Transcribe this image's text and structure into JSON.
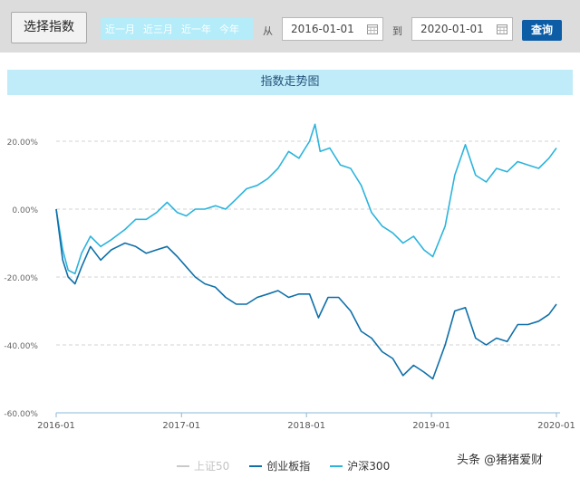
{
  "toolbar": {
    "select_index_label": "选择指数",
    "quick_ranges": [
      "近一月",
      "近三月",
      "近一年",
      "今年"
    ],
    "from_label": "从",
    "start_date": "2016-01-01",
    "to_label": "到",
    "end_date": "2020-01-01",
    "query_label": "查询"
  },
  "chart_title": "指数走势图",
  "watermark": "头条 @猪猪爱财",
  "colors": {
    "shanghai50": "#c9c9c9",
    "chinext": "#0e6fa9",
    "hs300": "#2cb4dd"
  },
  "chart_data": {
    "type": "line",
    "title": "指数走势图",
    "x_ticks": [
      "2016-01",
      "2017-01",
      "2018-01",
      "2019-01",
      "2020-01"
    ],
    "y_ticks": [
      "20.00%",
      "0.00%",
      "-20.00%",
      "-40.00%",
      "-60.00%"
    ],
    "ylim": [
      -60,
      20
    ],
    "y_unit": "%",
    "grid": "horizontal dashed",
    "legend_position": "bottom",
    "series": [
      {
        "name": "上证50",
        "hidden": true,
        "points": []
      },
      {
        "name": "创业板指",
        "points": [
          [
            "2016-01-01",
            0
          ],
          [
            "2016-01-20",
            -15
          ],
          [
            "2016-02-05",
            -20
          ],
          [
            "2016-02-25",
            -22
          ],
          [
            "2016-03-15",
            -17
          ],
          [
            "2016-04-10",
            -11
          ],
          [
            "2016-05-10",
            -15
          ],
          [
            "2016-06-10",
            -12
          ],
          [
            "2016-07-20",
            -10
          ],
          [
            "2016-08-20",
            -11
          ],
          [
            "2016-09-20",
            -13
          ],
          [
            "2016-10-20",
            -12
          ],
          [
            "2016-11-20",
            -11
          ],
          [
            "2016-12-20",
            -14
          ],
          [
            "2017-01-15",
            -17
          ],
          [
            "2017-02-10",
            -20
          ],
          [
            "2017-03-10",
            -22
          ],
          [
            "2017-04-10",
            -23
          ],
          [
            "2017-05-10",
            -26
          ],
          [
            "2017-06-10",
            -28
          ],
          [
            "2017-07-10",
            -28
          ],
          [
            "2017-08-10",
            -26
          ],
          [
            "2017-09-10",
            -25
          ],
          [
            "2017-10-10",
            -24
          ],
          [
            "2017-11-10",
            -26
          ],
          [
            "2017-12-10",
            -25
          ],
          [
            "2018-01-10",
            -25
          ],
          [
            "2018-02-05",
            -32
          ],
          [
            "2018-03-05",
            -26
          ],
          [
            "2018-04-05",
            -26
          ],
          [
            "2018-05-10",
            -30
          ],
          [
            "2018-06-10",
            -36
          ],
          [
            "2018-07-10",
            -38
          ],
          [
            "2018-08-10",
            -42
          ],
          [
            "2018-09-10",
            -44
          ],
          [
            "2018-10-10",
            -49
          ],
          [
            "2018-11-10",
            -46
          ],
          [
            "2018-12-10",
            -48
          ],
          [
            "2019-01-05",
            -50
          ],
          [
            "2019-02-10",
            -40
          ],
          [
            "2019-03-10",
            -30
          ],
          [
            "2019-04-10",
            -29
          ],
          [
            "2019-05-10",
            -38
          ],
          [
            "2019-06-10",
            -40
          ],
          [
            "2019-07-10",
            -38
          ],
          [
            "2019-08-10",
            -39
          ],
          [
            "2019-09-10",
            -34
          ],
          [
            "2019-10-10",
            -34
          ],
          [
            "2019-11-10",
            -33
          ],
          [
            "2019-12-10",
            -31
          ],
          [
            "2020-01-01",
            -28
          ]
        ]
      },
      {
        "name": "沪深300",
        "points": [
          [
            "2016-01-01",
            0
          ],
          [
            "2016-01-20",
            -12
          ],
          [
            "2016-02-05",
            -18
          ],
          [
            "2016-02-25",
            -19
          ],
          [
            "2016-03-15",
            -13
          ],
          [
            "2016-04-10",
            -8
          ],
          [
            "2016-05-10",
            -11
          ],
          [
            "2016-06-10",
            -9
          ],
          [
            "2016-07-20",
            -6
          ],
          [
            "2016-08-20",
            -3
          ],
          [
            "2016-09-20",
            -3
          ],
          [
            "2016-10-20",
            -1
          ],
          [
            "2016-11-20",
            2
          ],
          [
            "2016-12-20",
            -1
          ],
          [
            "2017-01-15",
            -2
          ],
          [
            "2017-02-10",
            0
          ],
          [
            "2017-03-10",
            0
          ],
          [
            "2017-04-10",
            1
          ],
          [
            "2017-05-10",
            0
          ],
          [
            "2017-06-10",
            3
          ],
          [
            "2017-07-10",
            6
          ],
          [
            "2017-08-10",
            7
          ],
          [
            "2017-09-10",
            9
          ],
          [
            "2017-10-10",
            12
          ],
          [
            "2017-11-10",
            17
          ],
          [
            "2017-12-10",
            15
          ],
          [
            "2018-01-10",
            20
          ],
          [
            "2018-01-26",
            25
          ],
          [
            "2018-02-10",
            17
          ],
          [
            "2018-03-10",
            18
          ],
          [
            "2018-04-10",
            13
          ],
          [
            "2018-05-10",
            12
          ],
          [
            "2018-06-10",
            7
          ],
          [
            "2018-07-10",
            -1
          ],
          [
            "2018-08-10",
            -5
          ],
          [
            "2018-09-10",
            -7
          ],
          [
            "2018-10-10",
            -10
          ],
          [
            "2018-11-10",
            -8
          ],
          [
            "2018-12-10",
            -12
          ],
          [
            "2019-01-05",
            -14
          ],
          [
            "2019-02-10",
            -5
          ],
          [
            "2019-03-10",
            10
          ],
          [
            "2019-04-10",
            19
          ],
          [
            "2019-05-10",
            10
          ],
          [
            "2019-06-10",
            8
          ],
          [
            "2019-07-10",
            12
          ],
          [
            "2019-08-10",
            11
          ],
          [
            "2019-09-10",
            14
          ],
          [
            "2019-10-10",
            13
          ],
          [
            "2019-11-10",
            12
          ],
          [
            "2019-12-10",
            15
          ],
          [
            "2020-01-01",
            18
          ]
        ]
      }
    ]
  }
}
